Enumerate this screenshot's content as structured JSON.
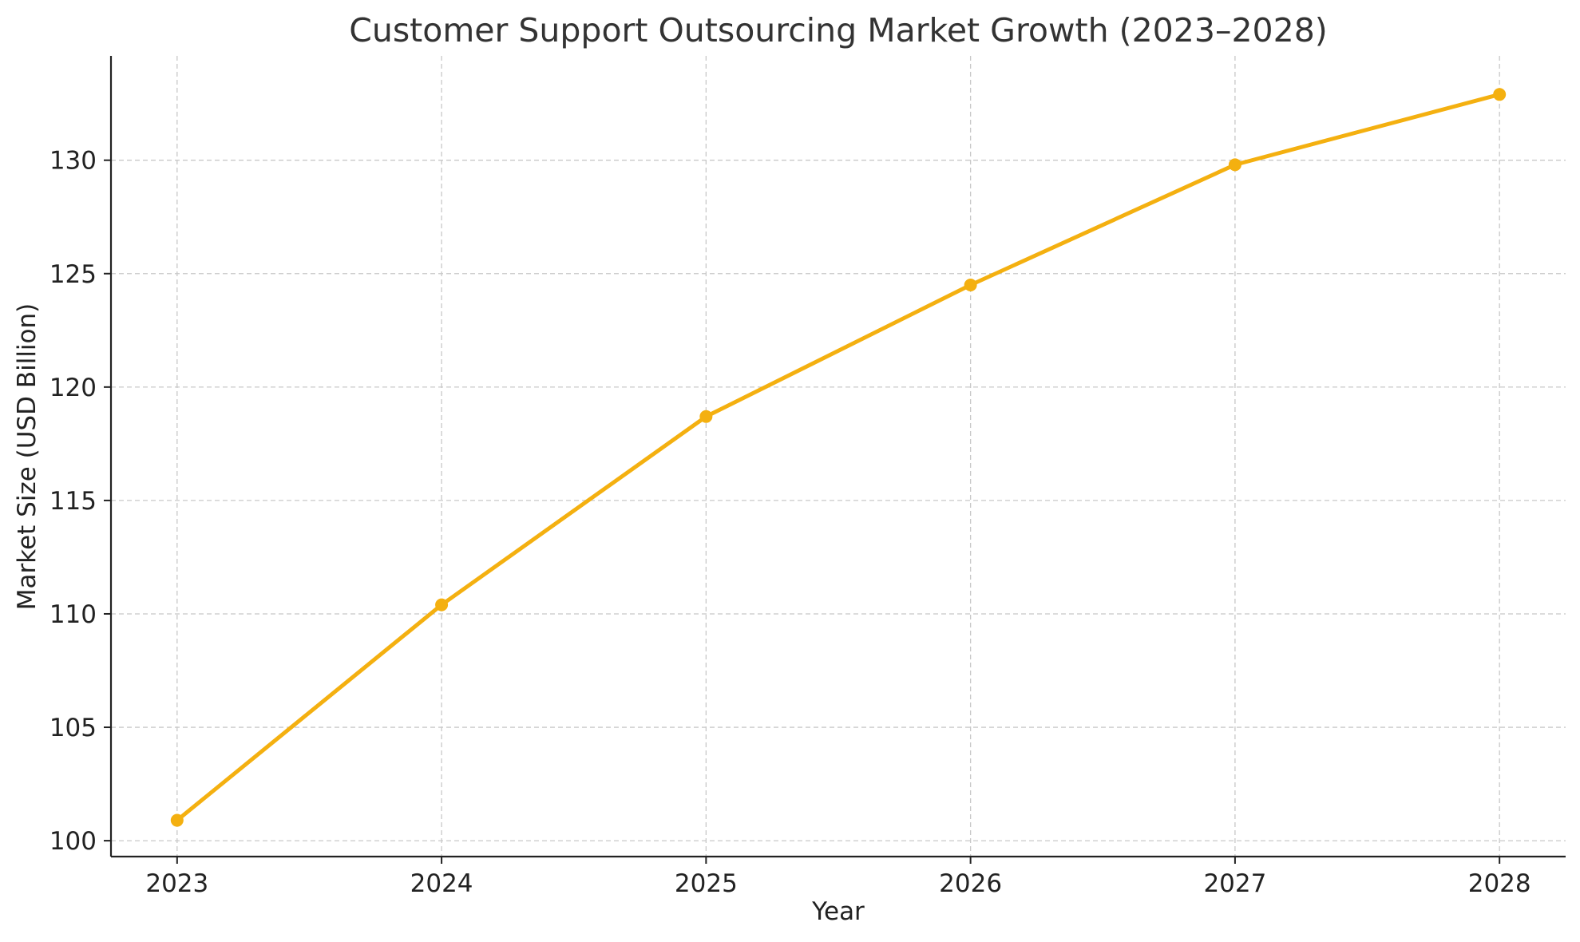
{
  "chart_data": {
    "type": "line",
    "title": "Customer Support Outsourcing Market Growth (2023–2028)",
    "xlabel": "Year",
    "ylabel": "Market Size (USD Billion)",
    "x": [
      "2023",
      "2024",
      "2025",
      "2026",
      "2027",
      "2028"
    ],
    "series": [
      {
        "name": "",
        "values": [
          100.9,
          110.4,
          118.7,
          124.5,
          129.8,
          132.9
        ],
        "color": "#F4B010"
      }
    ],
    "xlim": [
      2022.75,
      2028.25
    ],
    "ylim": [
      99.3,
      134.6
    ],
    "yticks": [
      100,
      105,
      110,
      115,
      120,
      125,
      130
    ],
    "grid": true,
    "legend": "none"
  }
}
